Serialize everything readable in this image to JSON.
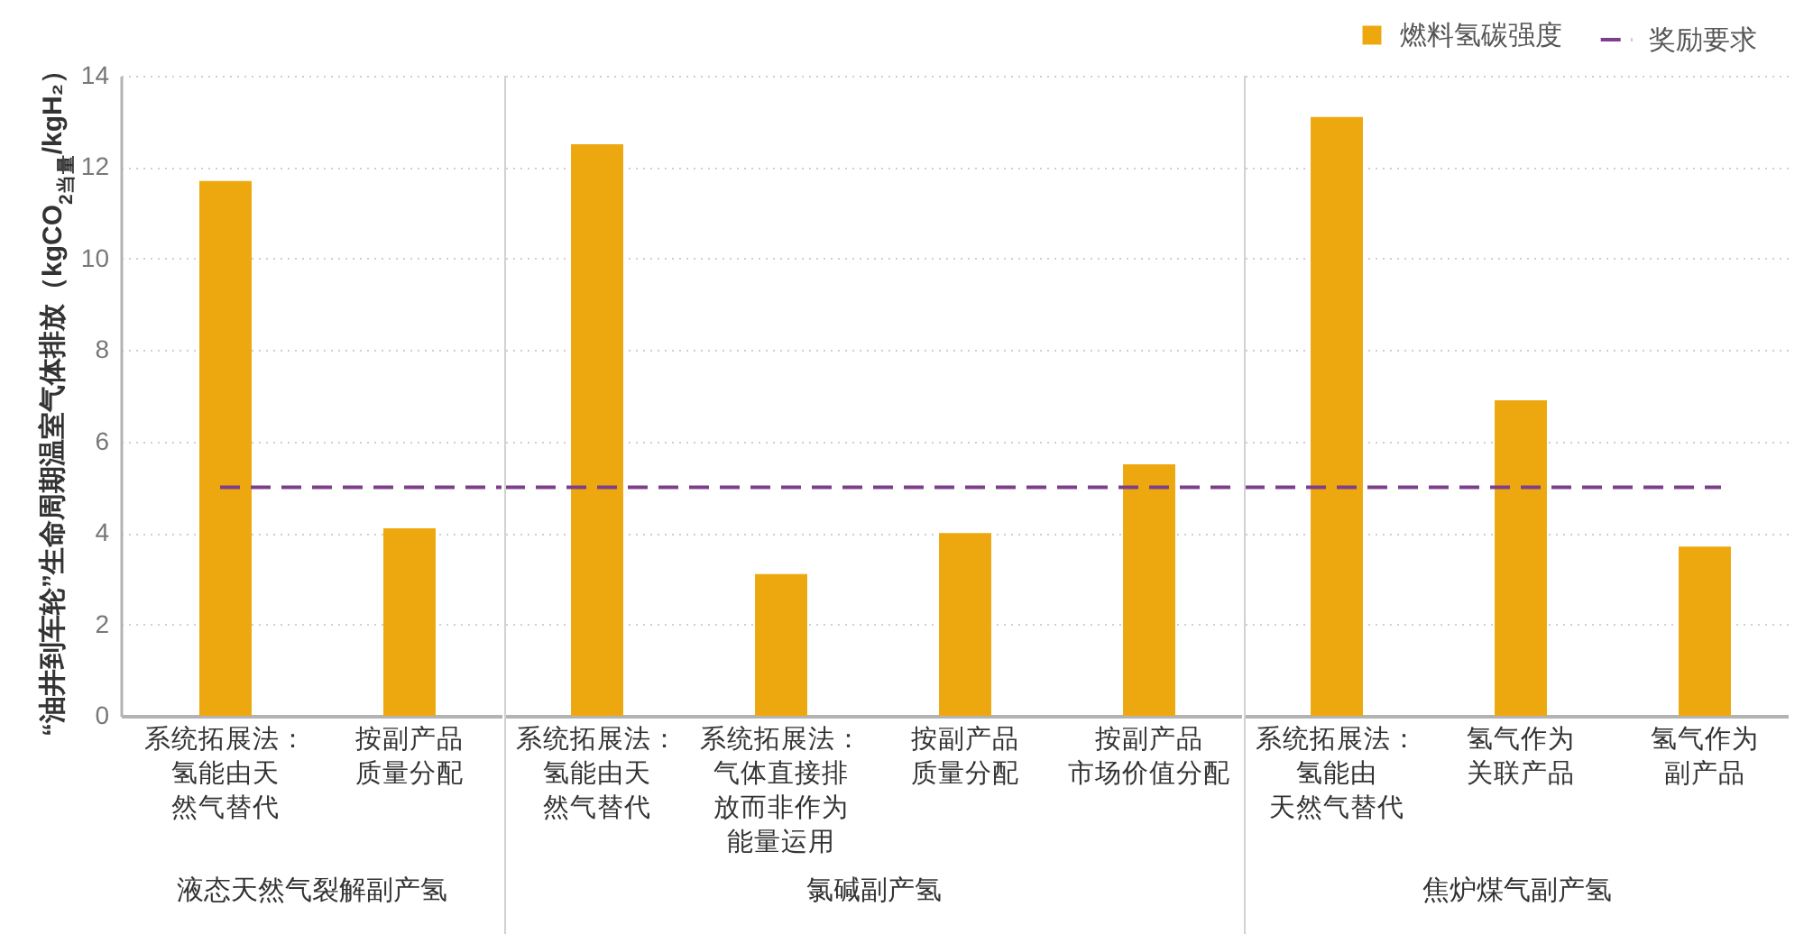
{
  "chart_data": [
    {
      "type": "bar",
      "ylabel": "“油井到车轮”生命周期温室气体排放（kgCO$_{2当量}$/kgH₂）",
      "xlabel": "液态天然气裂解副产氢",
      "categories": [
        "系统拓展法：氢能由天然气替代",
        "按副产品质量分配"
      ],
      "series": [
        {
          "color": "#eea80f",
          "values": [
            11.7,
            4.1
          ]
        }
      ],
      "ylim": [
        0,
        14
      ],
      "yticks": [
        0,
        2,
        4,
        6,
        8,
        10,
        12,
        14
      ],
      "grid": "y",
      "ref_lines": [
        {
          "axis": "y",
          "value": 5,
          "color": "#7d3f8a",
          "line_style": "dashed"
        }
      ]
    },
    {
      "type": "bar",
      "xlabel": "氯碱副产氢",
      "categories": [
        "系统拓展法：氢能由天然气替代",
        "系统拓展法：气体直接排放而非作为能量运用",
        "按副产品质量分配",
        "按副产品市场价值分配"
      ],
      "series": [
        {
          "color": "#eea80f",
          "values": [
            12.5,
            3.1,
            4.0,
            5.5
          ]
        }
      ],
      "ylim": [
        0,
        14
      ],
      "yticks": [
        0,
        2,
        4,
        6,
        8,
        10,
        12,
        14
      ],
      "tick_labels": "x",
      "grid": "y",
      "ref_lines": [
        {
          "axis": "y",
          "value": 5,
          "color": "#7d3f8a",
          "line_style": "dashed"
        }
      ]
    },
    {
      "type": "bar",
      "xlabel": "焦炉煤气副产氢",
      "categories": [
        "系统拓展法：氢能由天然气替代",
        "氢气作为关联产品",
        "氢气作为副产品"
      ],
      "series": [
        {
          "name": "燃料氢碳强度",
          "color": "#eea80f",
          "values": [
            13.1,
            6.9,
            3.7
          ]
        }
      ],
      "ylim": [
        0,
        14
      ],
      "yticks": [
        0,
        2,
        4,
        6,
        8,
        10,
        12,
        14
      ],
      "tick_labels": "x",
      "grid": "y",
      "legend": "top right",
      "ref_lines": [
        {
          "axis": "y",
          "value": 5,
          "label": "奖励要求",
          "color": "#7d3f8a",
          "line_style": "dashed"
        }
      ]
    }
  ]
}
